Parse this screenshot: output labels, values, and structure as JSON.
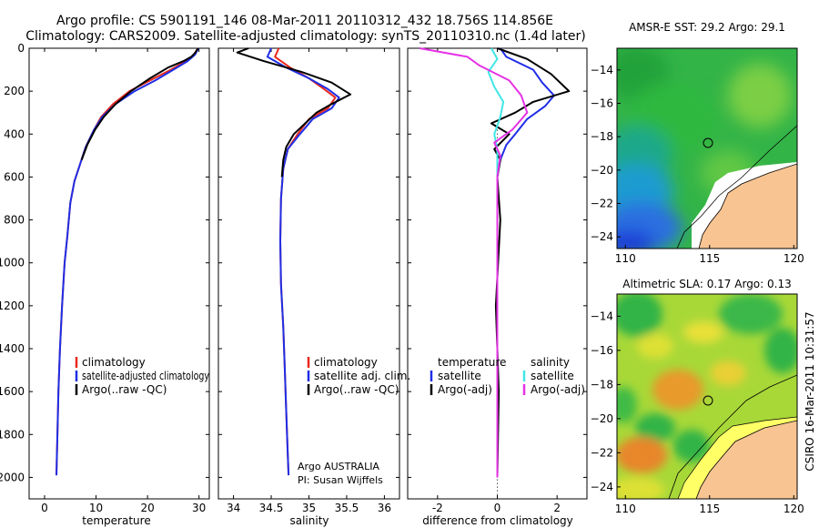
{
  "header": {
    "line1": "Argo profile: CS 5901191_146 08-Mar-2011 20110312_432 18.756S 114.856E",
    "line2": "Climatology: CARS2009. Satellite-adjusted climatology: synTS_20110310.nc (1.4d later)"
  },
  "colors": {
    "climatology": "#e8281e",
    "satellite": "#1f2ee6",
    "argo": "#000000",
    "satellite_sal": "#3fe6e6",
    "argo_sal": "#e632e6",
    "land": "#f7c492",
    "ocean_green": "#33b447",
    "ocean_blue": "#2a8fe0"
  },
  "chart_data": [
    {
      "type": "line",
      "name": "temperature-panel",
      "xlabel": "temperature",
      "ylabel": "",
      "xlim": [
        -3,
        32
      ],
      "ylim": [
        2100,
        0
      ],
      "xticks": [
        0,
        10,
        20,
        30
      ],
      "yticks": [
        0,
        200,
        400,
        600,
        800,
        1000,
        1200,
        1400,
        1600,
        1800,
        2000
      ],
      "legend": {
        "placement": "lower-middle",
        "entries": [
          "climatology",
          "satellite-adjusted climatology",
          "Argo(..raw -QC)"
        ]
      },
      "series": [
        {
          "name": "climatology",
          "color_key": "climatology",
          "x": [
            29.8,
            29.0,
            27.5,
            24.5,
            20.5,
            16.5,
            13.3,
            11.0,
            9.6,
            8.0,
            6.9,
            5.8,
            5.0,
            4.4,
            3.9,
            3.4,
            3.0,
            2.7,
            2.5,
            2.3
          ],
          "y": [
            0,
            30,
            60,
            100,
            150,
            200,
            260,
            320,
            380,
            460,
            540,
            620,
            720,
            880,
            1000,
            1200,
            1400,
            1600,
            1800,
            1990
          ]
        },
        {
          "name": "satellite-adjusted climatology",
          "color_key": "satellite",
          "x": [
            29.9,
            29.2,
            27.8,
            25.0,
            21.5,
            17.5,
            13.8,
            11.2,
            9.6,
            8.0,
            6.9,
            5.8,
            5.0,
            4.4,
            3.9,
            3.4,
            3.0,
            2.7,
            2.5,
            2.3
          ],
          "y": [
            0,
            30,
            60,
            100,
            150,
            200,
            260,
            320,
            380,
            460,
            540,
            620,
            720,
            880,
            1000,
            1200,
            1400,
            1600,
            1800,
            1990
          ]
        },
        {
          "name": "Argo(..raw -QC)",
          "color_key": "argo",
          "x": [
            29.8,
            29.3,
            28.5,
            27.0,
            24.0,
            20.5,
            16.8,
            13.8,
            11.5,
            9.8,
            8.3,
            7.2
          ],
          "y": [
            0,
            20,
            40,
            60,
            90,
            140,
            200,
            260,
            320,
            380,
            450,
            520
          ]
        }
      ]
    },
    {
      "type": "line",
      "name": "salinity-panel",
      "xlabel": "salinity",
      "xlim": [
        33.8,
        36.2
      ],
      "ylim": [
        2100,
        0
      ],
      "xticks": [
        34,
        34.5,
        35,
        35.5,
        36
      ],
      "legend": {
        "placement": "lower-right",
        "entries": [
          "climatology",
          "satellite adj. clim.",
          "Argo(..raw -QC)"
        ]
      },
      "annotation": [
        "Argo AUSTRALIA",
        "PI: Susan Wijffels"
      ],
      "series": [
        {
          "name": "climatology",
          "color_key": "climatology",
          "x": [
            34.6,
            34.55,
            34.75,
            35.0,
            35.2,
            35.35,
            35.25,
            35.0,
            34.85,
            34.72,
            34.66,
            34.63,
            34.62,
            34.63,
            34.66,
            34.68,
            34.7,
            34.72,
            34.73
          ],
          "y": [
            0,
            40,
            90,
            140,
            190,
            230,
            280,
            330,
            400,
            470,
            560,
            700,
            900,
            1100,
            1300,
            1500,
            1700,
            1900,
            1990
          ]
        },
        {
          "name": "satellite adj. clim.",
          "color_key": "satellite",
          "x": [
            34.5,
            34.45,
            34.7,
            35.0,
            35.25,
            35.4,
            35.3,
            35.05,
            34.88,
            34.72,
            34.66,
            34.63,
            34.62,
            34.63,
            34.66,
            34.68,
            34.7,
            34.72,
            34.73
          ],
          "y": [
            0,
            40,
            90,
            140,
            190,
            230,
            280,
            330,
            400,
            470,
            560,
            700,
            900,
            1100,
            1300,
            1500,
            1700,
            1900,
            1990
          ]
        },
        {
          "name": "Argo(..raw -QC)",
          "color_key": "argo",
          "x": [
            34.2,
            34.05,
            34.4,
            34.9,
            35.3,
            35.55,
            35.3,
            35.1,
            34.95,
            34.8,
            34.7,
            34.66,
            34.64
          ],
          "y": [
            0,
            20,
            60,
            110,
            160,
            215,
            260,
            300,
            350,
            400,
            460,
            520,
            600
          ]
        }
      ]
    },
    {
      "type": "line",
      "name": "difference-panel",
      "xlabel": "difference from climatology",
      "xlim": [
        -3,
        3
      ],
      "ylim": [
        2100,
        0
      ],
      "xticks": [
        -2,
        0,
        2
      ],
      "legend": {
        "placement": "lower",
        "entries": [
          "temperature",
          "satellite",
          "Argo(-adj)",
          "salinity",
          "satellite",
          "Argo(-adj)"
        ]
      },
      "series": [
        {
          "name": "temperature satellite",
          "color_key": "satellite",
          "x": [
            0.1,
            0.3,
            1.2,
            1.5,
            1.9,
            1.6,
            1.0,
            0.6,
            0.3,
            0.1,
            0.0,
            0.0,
            0.0,
            0.0,
            0.0
          ],
          "y": [
            0,
            40,
            100,
            160,
            220,
            270,
            330,
            400,
            450,
            520,
            600,
            900,
            1300,
            1700,
            1990
          ]
        },
        {
          "name": "temperature Argo(-adj)",
          "color_key": "argo",
          "x": [
            0.0,
            1.0,
            1.8,
            2.4,
            1.2,
            0.6,
            -0.2,
            0.4,
            -0.1,
            0.1,
            0.0,
            0.1,
            -0.05,
            0.05,
            0.0
          ],
          "y": [
            0,
            50,
            120,
            200,
            250,
            300,
            350,
            400,
            470,
            520,
            600,
            800,
            1200,
            1600,
            2000
          ]
        },
        {
          "name": "salinity satellite",
          "color_key": "satellite_sal",
          "x": [
            -0.2,
            0.0,
            -0.3,
            -0.1,
            0.2,
            0.1,
            -0.1,
            0.0,
            0.0,
            0.0,
            0.0,
            0.0
          ],
          "y": [
            0,
            50,
            110,
            180,
            250,
            320,
            400,
            470,
            600,
            1000,
            1500,
            1990
          ]
        },
        {
          "name": "salinity Argo(-adj)",
          "color_key": "argo_sal",
          "x": [
            -2.6,
            -1.0,
            -0.6,
            0.4,
            0.8,
            1.0,
            0.5,
            -0.1,
            0.1,
            0.0,
            0.0,
            0.0
          ],
          "y": [
            0,
            40,
            80,
            150,
            220,
            300,
            380,
            440,
            500,
            600,
            1000,
            2000
          ]
        }
      ]
    },
    {
      "type": "heatmap",
      "name": "sst-map",
      "title": "AMSR-E SST: 29.2  Argo: 29.1",
      "xlim": [
        109.5,
        120.2
      ],
      "ylim": [
        -24.7,
        -12.7
      ],
      "xticks": [
        110,
        115,
        120
      ],
      "yticks": [
        -14,
        -16,
        -18,
        -20,
        -22,
        -24
      ],
      "marker": {
        "lon": 114.856,
        "lat": -18.756
      }
    },
    {
      "type": "heatmap",
      "name": "sla-map",
      "title": "Altimetric SLA: 0.17  Argo: 0.13",
      "xlim": [
        109.5,
        120.2
      ],
      "ylim": [
        -24.7,
        -12.7
      ],
      "xticks": [
        110,
        115,
        120
      ],
      "yticks": [
        -14,
        -16,
        -18,
        -20,
        -22,
        -24
      ],
      "marker": {
        "lon": 114.856,
        "lat": -18.756
      }
    }
  ],
  "footer": {
    "credit": "CSIRO 16-Mar-2011 10:31:57"
  }
}
